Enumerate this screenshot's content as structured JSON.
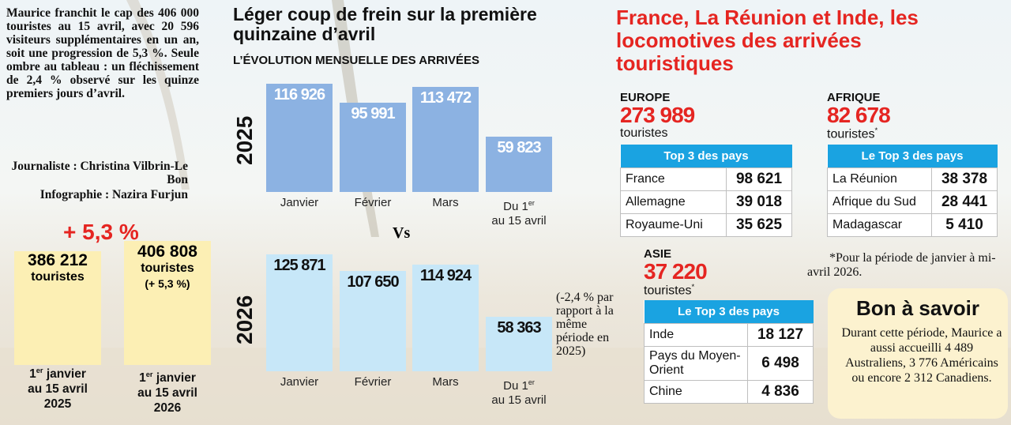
{
  "left": {
    "paragraph": "Maurice franchit le cap des 406 000 touristes au 15 avril, avec 20 596 visiteurs supplémentaires en un an, soit une progression de 5,3 %. Seule ombre au tableau : un fléchissement de 2,4 % observé sur les quinze premiers jours d’avril.",
    "credits": [
      "Journaliste : Christina Vilbrin-Le Bon",
      "Infographie : Nazira Furjun"
    ],
    "growth": "+ 5,3 %",
    "boxes": [
      {
        "value": "386 212",
        "unit": "touristes",
        "period": [
          "1",
          "er",
          "janvier",
          "au 15 avril",
          "2025"
        ]
      },
      {
        "value": "406 808",
        "unit": "touristes",
        "note": "(+ 5,3 %)",
        "period": [
          "1",
          "er",
          "janvier",
          "au 15 avril",
          "2026"
        ]
      }
    ]
  },
  "middle": {
    "title": "Léger coup de frein sur la première quinzaine d’avril",
    "subtitle": "L’ÉVOLUTION MENSUELLE DES ARRIVÉES",
    "categories": [
      [
        "Janvier"
      ],
      [
        "Février"
      ],
      [
        "Mars"
      ],
      [
        "Du 1",
        "er",
        "au 15 avril"
      ]
    ],
    "years": [
      {
        "year": "2025",
        "values": [
          116926,
          95991,
          113472,
          59823
        ],
        "value_labels": [
          "116 926",
          "95 991",
          "113 472",
          "59 823"
        ]
      },
      {
        "year": "2026",
        "values": [
          125871,
          107650,
          114924,
          58363
        ],
        "value_labels": [
          "125 871",
          "107 650",
          "114 924",
          "58 363"
        ]
      }
    ],
    "vs": "Vs",
    "note": "(-2,4 % par rapport à la même période en 2025)"
  },
  "right": {
    "title": "France, La Réunion et Inde, les locomotives des arrivées touristiques",
    "regions": [
      {
        "name": "EUROPE",
        "total": "273 989",
        "unit": "touristes",
        "table_header": "Top 3 des pays",
        "rows": [
          [
            "France",
            "98 621"
          ],
          [
            "Allemagne",
            "39 018"
          ],
          [
            "Royaume-Uni",
            "35 625"
          ]
        ]
      },
      {
        "name": "AFRIQUE",
        "total": "82 678",
        "unit": "touristes",
        "unit_mark": "*",
        "table_header": "Le Top 3 des pays",
        "rows": [
          [
            "La Réunion",
            "38 378"
          ],
          [
            "Afrique du Sud",
            "28 441"
          ],
          [
            "Madagascar",
            "5 410"
          ]
        ]
      },
      {
        "name": "ASIE",
        "total": "37 220",
        "unit": "touristes",
        "unit_mark": "*",
        "table_header": "Le Top 3 des pays",
        "rows": [
          [
            "Inde",
            "18 127"
          ],
          [
            "Pays du Moyen-Orient",
            "6 498"
          ],
          [
            "Chine",
            "4 836"
          ]
        ]
      }
    ],
    "footnote": "*Pour la période de janvier à mi-avril 2026.",
    "tip": {
      "title": "Bon à savoir",
      "text": "Durant cette période, Maurice a aussi accueilli 4 489 Australiens, 3 776 Américains ou encore 2 312 Canadiens."
    }
  }
}
